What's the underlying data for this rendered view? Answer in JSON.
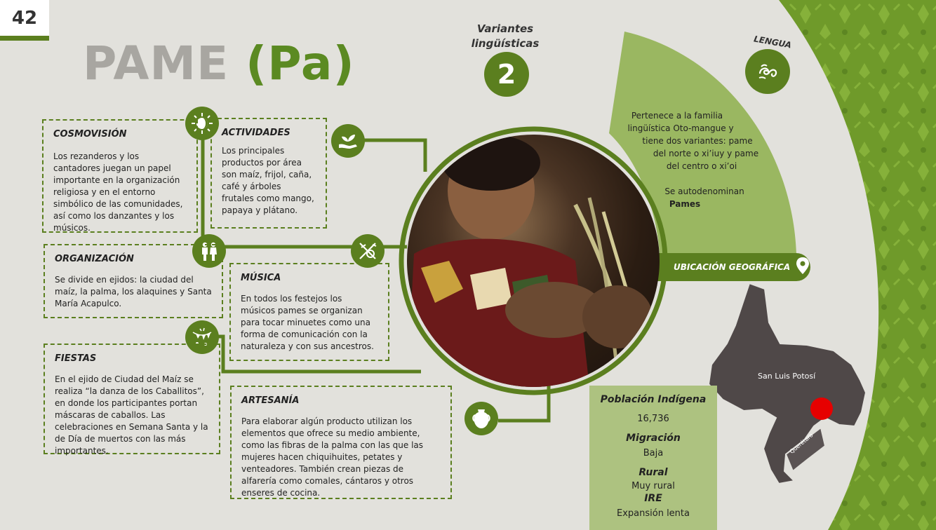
{
  "page_number": "42",
  "title": {
    "name": "PAME",
    "code": "(Pa)"
  },
  "variants": {
    "label_line1": "Variantes",
    "label_line2": "lingüísticas",
    "count": "2"
  },
  "lengua": {
    "label": "LENGUA",
    "line1": "Pertenece a la familia",
    "line2": "lingüística Oto-mangue y",
    "line3": "tiene dos variantes:  pame",
    "line4": "del norte o xi’iuy y pame",
    "line5": "del centro o xi’oi",
    "line6": "Se autodenominan",
    "line7": "Pames"
  },
  "ubicacion": {
    "label": "UBICACIÓN GEOGRÁFICA"
  },
  "map": {
    "state_label": "San Luis Potosí",
    "neighbor_label": "Querétaro",
    "marker_color": "#e60000"
  },
  "sections": {
    "cosmovision": {
      "title": "COSMOVISIÓN",
      "text": "Los rezanderos y los cantadores juegan un papel importante en la organización religiosa y en el entorno simbólico de las comunidades, así como los danzantes y los músicos."
    },
    "actividades": {
      "title": "ACTIVIDADES",
      "text": "Los principales productos por área son maíz, frijol, caña, café y árboles frutales como mango, papaya y plátano."
    },
    "organizacion": {
      "title": "ORGANIZACIÓN",
      "text": "Se divide en ejidos: la ciudad del maíz, la palma, los alaquines y Santa María Acapulco."
    },
    "musica": {
      "title": "MÚSICA",
      "text": "En todos los festejos los músicos pames se organizan para tocar minuetes como una forma de comunicación con la naturaleza y con sus ancestros."
    },
    "fiestas": {
      "title": "FIESTAS",
      "text": "En el ejido de Ciudad del Maíz se realiza “la danza de los Caballitos”, en donde los participantes portan máscaras de caballos. Las celebraciones en Semana Santa y la de Día de muertos con las más importantes."
    },
    "artesania": {
      "title": "ARTESANÍA",
      "text": "Para elaborar algún producto utilizan los elementos que ofrece su medio ambiente, como las fibras de la palma con las que las mujeres hacen chiquihuites, petates y venteadores. También crean piezas de alfarería como comales, cántaros y otros enseres de cocina."
    }
  },
  "poblacion": {
    "title": "Población Indígena",
    "value": "16,736",
    "migracion_label": "Migración",
    "migracion_value": "Baja",
    "rural_label": "Rural",
    "rural_value": "Muy rural",
    "ire_label": "IRE",
    "ire_value": "Expansión lenta"
  },
  "colors": {
    "accent": "#5b7f1f",
    "light_green": "#9ab761",
    "box_green": "#adc280",
    "background": "#e2e1dc",
    "map_gray": "#4f4848"
  },
  "icons": [
    "sun-moon-icon",
    "hands-plant-icon",
    "people-icon",
    "music-instruments-icon",
    "festival-icon",
    "jar-icon",
    "swirl-icon",
    "location-pin-icon"
  ]
}
